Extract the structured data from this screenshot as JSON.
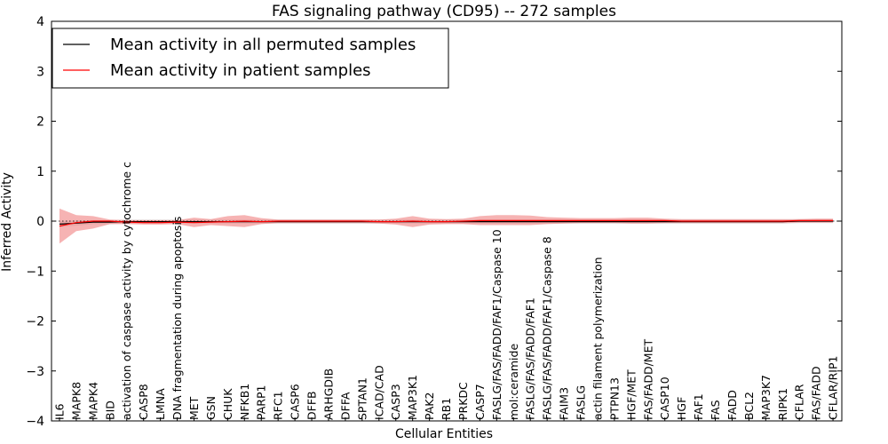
{
  "chart_data": {
    "type": "line",
    "title": "FAS signaling pathway (CD95) -- 272 samples",
    "xlabel": "Cellular Entities",
    "ylabel": "Inferred Activity",
    "ylim": [
      -4,
      4
    ],
    "yticks": [
      -4,
      -3,
      -2,
      -1,
      0,
      1,
      2,
      3,
      4
    ],
    "ytick_labels": [
      "−4",
      "−3",
      "−2",
      "−1",
      "0",
      "1",
      "2",
      "3",
      "4"
    ],
    "grid": false,
    "legend_position": "top-left",
    "categories": [
      "IL6",
      "MAPK8",
      "MAPK4",
      "BID",
      "activation of caspase activity by cytochrome c",
      "CASP8",
      "LMNA",
      "DNA fragmentation during apoptosis",
      "MET",
      "GSN",
      "CHUK",
      "NFKB1",
      "PARP1",
      "RFC1",
      "CASP6",
      "DFFB",
      "ARHGDIB",
      "DFFA",
      "SPTAN1",
      "ICAD/CAD",
      "CASP3",
      "MAP3K1",
      "PAK2",
      "RB1",
      "PRKDC",
      "CASP7",
      "FASLG/FAS/FADD/FAF1/Caspase 10",
      "mol:ceramide",
      "FASLG/FAS/FADD/FAF1",
      "FASLG/FAS/FADD/FAF1/Caspase 8",
      "FAIM3",
      "FASLG",
      "actin filament polymerization",
      "PTPN13",
      "HGF/MET",
      "FAS/FADD/MET",
      "CASP10",
      "HGF",
      "FAF1",
      "FAS",
      "FADD",
      "BCL2",
      "MAP3K7",
      "RIPK1",
      "CFLAR",
      "FAS/FADD",
      "CFLAR/RIP1"
    ],
    "series": [
      {
        "name": "Mean activity in all permuted samples",
        "color": "#000000",
        "values": [
          -0.06,
          -0.04,
          -0.02,
          -0.02,
          -0.01,
          -0.01,
          -0.01,
          -0.01,
          -0.01,
          -0.01,
          -0.01,
          -0.01,
          -0.01,
          -0.01,
          -0.01,
          -0.01,
          -0.01,
          -0.01,
          -0.01,
          -0.01,
          -0.01,
          -0.01,
          -0.01,
          -0.01,
          -0.01,
          -0.01,
          -0.01,
          -0.01,
          -0.01,
          -0.01,
          -0.01,
          -0.01,
          -0.01,
          -0.01,
          -0.01,
          -0.01,
          -0.01,
          -0.01,
          -0.01,
          -0.01,
          -0.01,
          -0.01,
          -0.01,
          -0.01,
          0.0,
          0.0,
          0.0
        ],
        "band": [
          0.06,
          0.05,
          0.04,
          0.04,
          0.04,
          0.04,
          0.04,
          0.04,
          0.04,
          0.04,
          0.04,
          0.04,
          0.04,
          0.04,
          0.04,
          0.04,
          0.04,
          0.04,
          0.04,
          0.04,
          0.04,
          0.04,
          0.04,
          0.04,
          0.04,
          0.04,
          0.04,
          0.04,
          0.04,
          0.04,
          0.04,
          0.04,
          0.04,
          0.04,
          0.04,
          0.04,
          0.04,
          0.04,
          0.04,
          0.04,
          0.04,
          0.04,
          0.04,
          0.04,
          0.04,
          0.04,
          0.04
        ],
        "band_color": "#d9d9d9"
      },
      {
        "name": "Mean activity in patient samples",
        "color": "#ff0000",
        "values": [
          -0.1,
          -0.03,
          0.0,
          0.0,
          -0.02,
          -0.03,
          -0.03,
          -0.02,
          -0.03,
          -0.02,
          -0.01,
          0.0,
          -0.01,
          0.0,
          0.0,
          0.0,
          0.0,
          0.0,
          0.0,
          -0.01,
          -0.01,
          0.0,
          -0.01,
          -0.01,
          0.0,
          0.01,
          0.01,
          0.01,
          0.01,
          0.01,
          0.01,
          0.01,
          0.01,
          0.01,
          0.01,
          0.01,
          0.01,
          0.0,
          0.0,
          0.0,
          0.0,
          0.0,
          0.0,
          0.0,
          0.01,
          0.01,
          0.01
        ],
        "upper": [
          0.25,
          0.12,
          0.1,
          0.03,
          0.02,
          0.02,
          0.02,
          0.02,
          0.07,
          0.04,
          0.1,
          0.12,
          0.06,
          0.03,
          0.03,
          0.03,
          0.03,
          0.03,
          0.03,
          0.03,
          0.05,
          0.1,
          0.05,
          0.04,
          0.05,
          0.1,
          0.12,
          0.12,
          0.11,
          0.08,
          0.07,
          0.06,
          0.06,
          0.06,
          0.07,
          0.07,
          0.05,
          0.04,
          0.04,
          0.04,
          0.04,
          0.04,
          0.04,
          0.04,
          0.04,
          0.05,
          0.05
        ],
        "lower": [
          -0.45,
          -0.2,
          -0.15,
          -0.06,
          -0.06,
          -0.07,
          -0.07,
          -0.06,
          -0.12,
          -0.08,
          -0.1,
          -0.12,
          -0.06,
          -0.04,
          -0.04,
          -0.04,
          -0.04,
          -0.04,
          -0.04,
          -0.05,
          -0.07,
          -0.12,
          -0.07,
          -0.06,
          -0.06,
          -0.08,
          -0.08,
          -0.08,
          -0.08,
          -0.06,
          -0.05,
          -0.04,
          -0.04,
          -0.04,
          -0.05,
          -0.05,
          -0.04,
          -0.04,
          -0.04,
          -0.04,
          -0.04,
          -0.04,
          -0.04,
          -0.04,
          -0.03,
          -0.03,
          -0.03
        ],
        "band_color": "#f08080"
      }
    ]
  }
}
